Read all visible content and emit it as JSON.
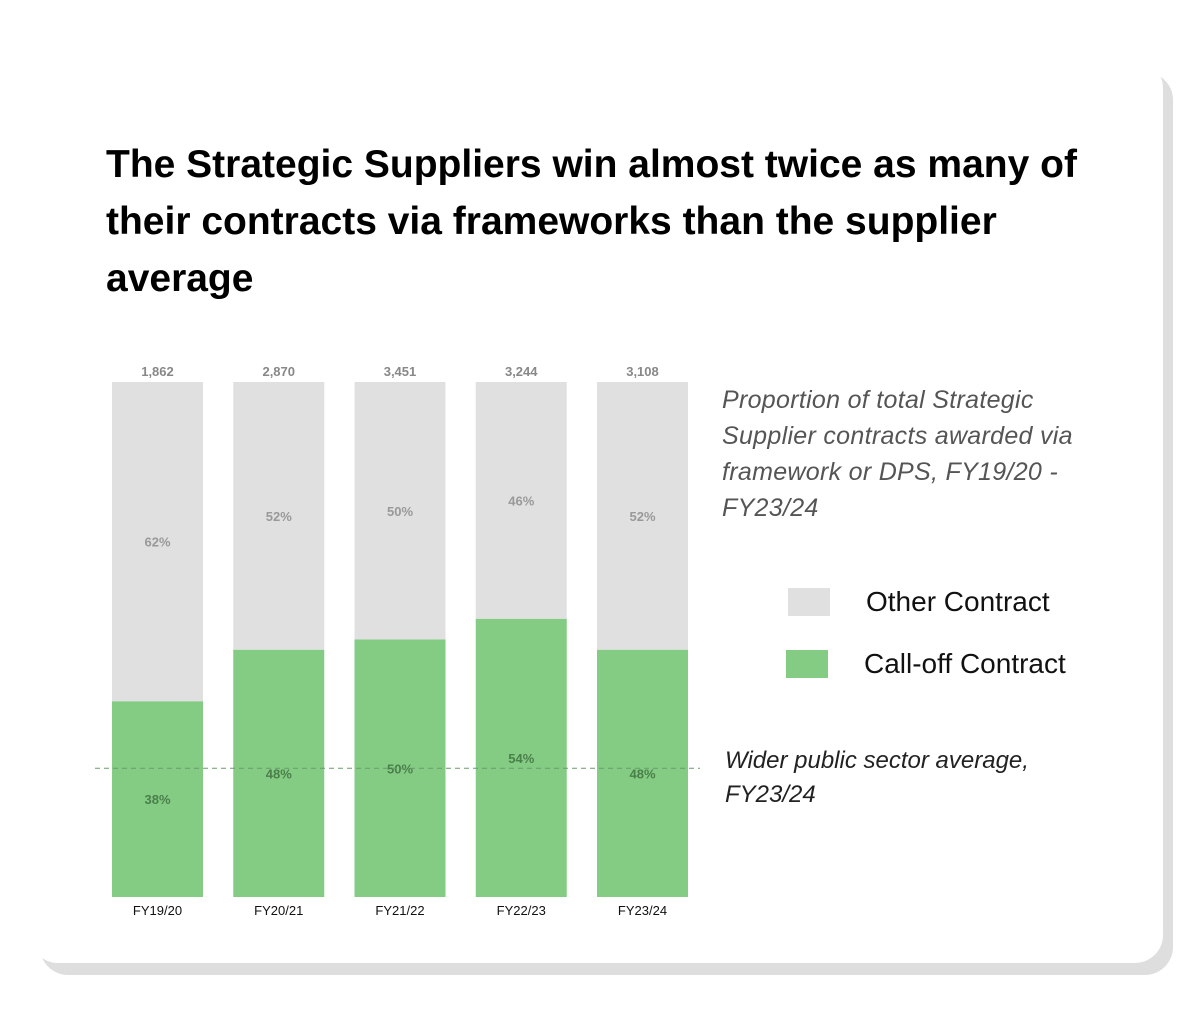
{
  "title": "The Strategic Suppliers win almost twice as many of their contracts via frameworks than the supplier average",
  "subtitle": "Proportion of total Strategic Supplier contracts awarded via framework or DPS, FY19/20 - FY23/24",
  "average_note": "Wider public sector average, FY23/24",
  "colors": {
    "other": "#e0e0e0",
    "calloff": "#84cc84",
    "total_label": "#888888",
    "other_label": "#999999",
    "calloff_label": "#4a7f4a",
    "average_line": "#6a9a6a"
  },
  "chart_data": {
    "type": "bar",
    "stacked": true,
    "normalized": true,
    "categories": [
      "FY19/20",
      "FY20/21",
      "FY21/22",
      "FY22/23",
      "FY23/24"
    ],
    "totals": [
      "1,862",
      "2,870",
      "3,451",
      "3,244",
      "3,108"
    ],
    "series": [
      {
        "name": "Call-off Contract",
        "values": [
          38,
          48,
          50,
          54,
          48
        ],
        "labels": [
          "38%",
          "48%",
          "50%",
          "54%",
          "48%"
        ]
      },
      {
        "name": "Other Contract",
        "values": [
          62,
          52,
          50,
          46,
          52
        ],
        "labels": [
          "62%",
          "52%",
          "50%",
          "46%",
          "52%"
        ]
      }
    ],
    "reference_line": {
      "value": 25,
      "style": "dashed"
    },
    "ylim": [
      0,
      100
    ],
    "legend": [
      {
        "label": "Other Contract",
        "color": "#e0e0e0"
      },
      {
        "label": "Call-off Contract",
        "color": "#84cc84"
      }
    ],
    "legend_position": "right",
    "grid": false
  }
}
